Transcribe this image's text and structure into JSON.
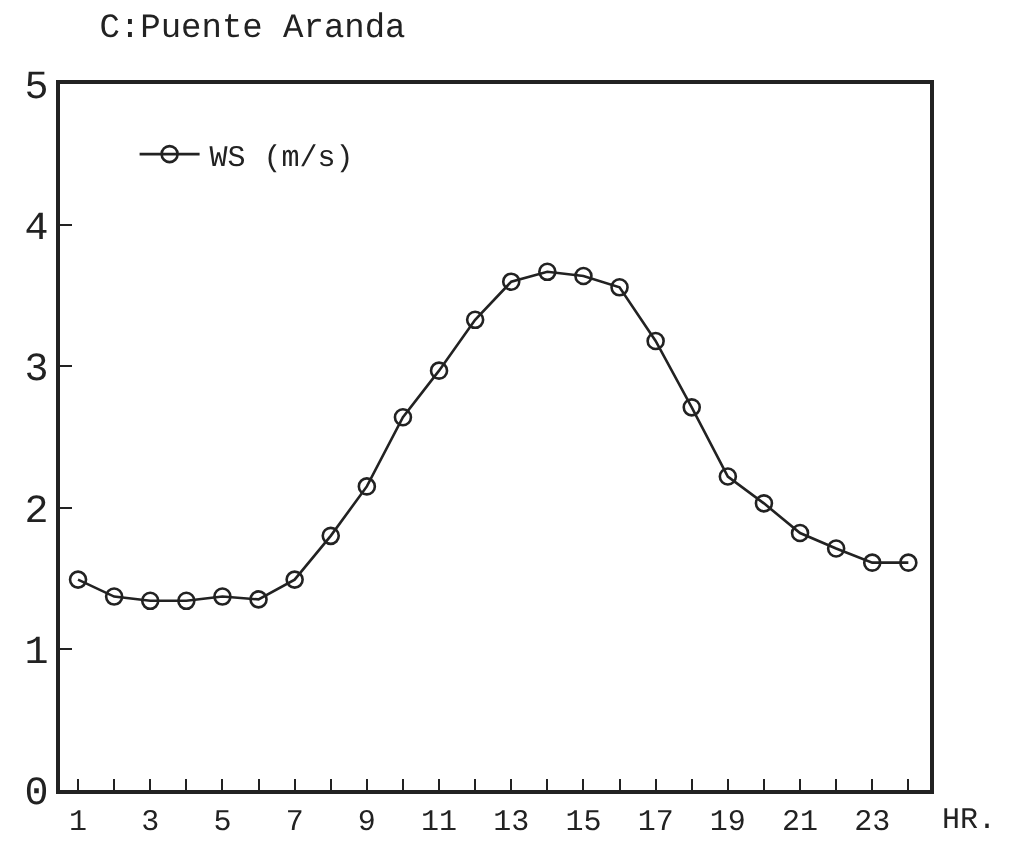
{
  "chart_data": {
    "type": "line",
    "title": "C:Puente Aranda",
    "xlabel": "HR.",
    "x": [
      1,
      2,
      3,
      4,
      5,
      6,
      7,
      8,
      9,
      10,
      11,
      12,
      13,
      14,
      15,
      16,
      17,
      18,
      19,
      20,
      21,
      22,
      23,
      24
    ],
    "series": [
      {
        "name": "WS (m/s)",
        "color": "#222222",
        "values": [
          1.49,
          1.37,
          1.34,
          1.34,
          1.37,
          1.35,
          1.49,
          1.8,
          2.15,
          2.64,
          2.97,
          3.33,
          3.6,
          3.67,
          3.64,
          3.56,
          3.18,
          2.71,
          2.22,
          2.03,
          1.82,
          1.71,
          1.61,
          1.61
        ]
      }
    ],
    "xlim": [
      0.5,
      24.6
    ],
    "xticks": [
      1,
      {
        "value": 2,
        "label": null
      },
      3,
      {
        "value": 4,
        "label": null
      },
      5,
      {
        "value": 6,
        "label": null
      },
      7,
      {
        "value": 8,
        "label": null
      },
      9,
      {
        "value": 10,
        "label": null
      },
      11,
      {
        "value": 12,
        "label": null
      },
      13,
      {
        "value": 14,
        "label": null
      },
      15,
      {
        "value": 16,
        "label": null
      },
      17,
      {
        "value": 18,
        "label": null
      },
      19,
      {
        "value": 20,
        "label": null
      },
      21,
      {
        "value": 22,
        "label": null
      },
      23,
      {
        "value": 24,
        "label": null
      }
    ],
    "ylim": [
      0,
      5
    ],
    "yticks": [
      0,
      1,
      2,
      3,
      4,
      5
    ],
    "grid": false,
    "legend": "top",
    "marker": "circle",
    "line_style": "solid"
  }
}
